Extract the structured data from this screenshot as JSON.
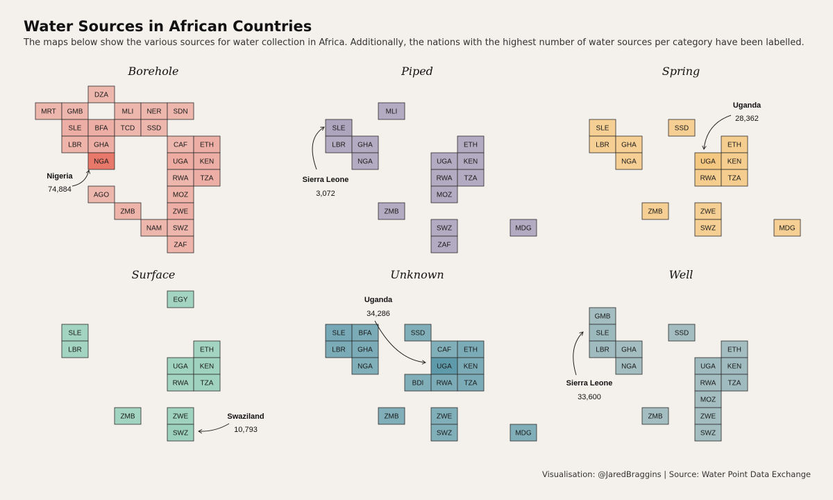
{
  "header": {
    "title": "Water Sources in African Countries",
    "subtitle": "The maps below show the various sources for water collection in Africa. Additionally, the nations with the highest number of water sources per category have been labelled."
  },
  "footer": {
    "caption": "Visualisation: @JaredBraggins  |  Source: Water Point Data Exchange"
  },
  "chart_data": [
    {
      "type": "tile-map",
      "title": "Borehole",
      "color": "#e8786a",
      "tiles": [
        {
          "code": "DZA",
          "col": 3,
          "row": 1,
          "level": 0.2
        },
        {
          "code": "MRT",
          "col": 1,
          "row": 2,
          "level": 0.2
        },
        {
          "code": "GMB",
          "col": 2,
          "row": 2,
          "level": 0.2
        },
        {
          "code": "MLI",
          "col": 4,
          "row": 2,
          "level": 0.2
        },
        {
          "code": "NER",
          "col": 5,
          "row": 2,
          "level": 0.2
        },
        {
          "code": "SDN",
          "col": 6,
          "row": 2,
          "level": 0.2
        },
        {
          "code": "SLE",
          "col": 2,
          "row": 3,
          "level": 0.3
        },
        {
          "code": "BFA",
          "col": 3,
          "row": 3,
          "level": 0.3
        },
        {
          "code": "TCD",
          "col": 4,
          "row": 3,
          "level": 0.2
        },
        {
          "code": "SSD",
          "col": 5,
          "row": 3,
          "level": 0.2
        },
        {
          "code": "LBR",
          "col": 2,
          "row": 4,
          "level": 0.25
        },
        {
          "code": "GHA",
          "col": 3,
          "row": 4,
          "level": 0.3
        },
        {
          "code": "CAF",
          "col": 6,
          "row": 4,
          "level": 0.2
        },
        {
          "code": "ETH",
          "col": 7,
          "row": 4,
          "level": 0.3
        },
        {
          "code": "NGA",
          "col": 3,
          "row": 5,
          "level": 1.0
        },
        {
          "code": "UGA",
          "col": 6,
          "row": 5,
          "level": 0.35
        },
        {
          "code": "KEN",
          "col": 7,
          "row": 5,
          "level": 0.3
        },
        {
          "code": "RWA",
          "col": 6,
          "row": 6,
          "level": 0.2
        },
        {
          "code": "TZA",
          "col": 7,
          "row": 6,
          "level": 0.3
        },
        {
          "code": "AGO",
          "col": 3,
          "row": 7,
          "level": 0.2
        },
        {
          "code": "MOZ",
          "col": 6,
          "row": 7,
          "level": 0.25
        },
        {
          "code": "ZMB",
          "col": 4,
          "row": 8,
          "level": 0.25
        },
        {
          "code": "ZWE",
          "col": 6,
          "row": 8,
          "level": 0.3
        },
        {
          "code": "NAM",
          "col": 5,
          "row": 9,
          "level": 0.2
        },
        {
          "code": "SWZ",
          "col": 6,
          "row": 9,
          "level": 0.2
        },
        {
          "code": "ZAF",
          "col": 6,
          "row": 10,
          "level": 0.25
        }
      ],
      "annotation": {
        "country": "Nigeria",
        "value": "74,884"
      }
    },
    {
      "type": "tile-map",
      "title": "Piped",
      "color": "#9c92b2",
      "tiles": [
        {
          "code": "MLI",
          "col": 4,
          "row": 2,
          "level": 0.6
        },
        {
          "code": "SLE",
          "col": 2,
          "row": 3,
          "level": 0.7
        },
        {
          "code": "LBR",
          "col": 2,
          "row": 4,
          "level": 0.6
        },
        {
          "code": "GHA",
          "col": 3,
          "row": 4,
          "level": 0.6
        },
        {
          "code": "ETH",
          "col": 7,
          "row": 4,
          "level": 0.6
        },
        {
          "code": "NGA",
          "col": 3,
          "row": 5,
          "level": 0.6
        },
        {
          "code": "UGA",
          "col": 6,
          "row": 5,
          "level": 0.6
        },
        {
          "code": "KEN",
          "col": 7,
          "row": 5,
          "level": 0.6
        },
        {
          "code": "RWA",
          "col": 6,
          "row": 6,
          "level": 0.6
        },
        {
          "code": "TZA",
          "col": 7,
          "row": 6,
          "level": 0.6
        },
        {
          "code": "MOZ",
          "col": 6,
          "row": 7,
          "level": 0.6
        },
        {
          "code": "ZMB",
          "col": 4,
          "row": 8,
          "level": 0.6
        },
        {
          "code": "SWZ",
          "col": 6,
          "row": 9,
          "level": 0.6
        },
        {
          "code": "MDG",
          "col": 9,
          "row": 9,
          "level": 0.6
        },
        {
          "code": "ZAF",
          "col": 6,
          "row": 10,
          "level": 0.6
        }
      ],
      "annotation": {
        "country": "Sierra Leone",
        "value": "3,072"
      }
    },
    {
      "type": "tile-map",
      "title": "Spring",
      "color": "#f5c77d",
      "tiles": [
        {
          "code": "SLE",
          "col": 2,
          "row": 3,
          "level": 0.7
        },
        {
          "code": "SSD",
          "col": 5,
          "row": 3,
          "level": 0.7
        },
        {
          "code": "LBR",
          "col": 2,
          "row": 4,
          "level": 0.7
        },
        {
          "code": "GHA",
          "col": 3,
          "row": 4,
          "level": 0.7
        },
        {
          "code": "ETH",
          "col": 7,
          "row": 4,
          "level": 0.75
        },
        {
          "code": "NGA",
          "col": 3,
          "row": 5,
          "level": 0.7
        },
        {
          "code": "UGA",
          "col": 6,
          "row": 5,
          "level": 0.95
        },
        {
          "code": "KEN",
          "col": 7,
          "row": 5,
          "level": 0.75
        },
        {
          "code": "RWA",
          "col": 6,
          "row": 6,
          "level": 0.75
        },
        {
          "code": "TZA",
          "col": 7,
          "row": 6,
          "level": 0.75
        },
        {
          "code": "ZMB",
          "col": 4,
          "row": 8,
          "level": 0.7
        },
        {
          "code": "ZWE",
          "col": 6,
          "row": 8,
          "level": 0.7
        },
        {
          "code": "SWZ",
          "col": 6,
          "row": 9,
          "level": 0.7
        },
        {
          "code": "MDG",
          "col": 9,
          "row": 9,
          "level": 0.7
        }
      ],
      "annotation": {
        "country": "Uganda",
        "value": "28,362"
      }
    },
    {
      "type": "tile-map",
      "title": "Surface",
      "color": "#8fcdb6",
      "tiles": [
        {
          "code": "EGY",
          "col": 6,
          "row": 1,
          "level": 0.7
        },
        {
          "code": "SLE",
          "col": 2,
          "row": 3,
          "level": 0.7
        },
        {
          "code": "LBR",
          "col": 2,
          "row": 4,
          "level": 0.7
        },
        {
          "code": "ETH",
          "col": 7,
          "row": 4,
          "level": 0.7
        },
        {
          "code": "UGA",
          "col": 6,
          "row": 5,
          "level": 0.75
        },
        {
          "code": "KEN",
          "col": 7,
          "row": 5,
          "level": 0.75
        },
        {
          "code": "RWA",
          "col": 6,
          "row": 6,
          "level": 0.7
        },
        {
          "code": "TZA",
          "col": 7,
          "row": 6,
          "level": 0.75
        },
        {
          "code": "ZMB",
          "col": 4,
          "row": 8,
          "level": 0.7
        },
        {
          "code": "ZWE",
          "col": 6,
          "row": 8,
          "level": 0.75
        },
        {
          "code": "SWZ",
          "col": 6,
          "row": 9,
          "level": 0.8
        }
      ],
      "annotation": {
        "country": "Swaziland",
        "value": "10,793"
      }
    },
    {
      "type": "tile-map",
      "title": "Unknown",
      "color": "#5e9aaa",
      "tiles": [
        {
          "code": "SLE",
          "col": 2,
          "row": 3,
          "level": 0.75
        },
        {
          "code": "BFA",
          "col": 3,
          "row": 3,
          "level": 0.7
        },
        {
          "code": "SSD",
          "col": 5,
          "row": 3,
          "level": 0.65
        },
        {
          "code": "LBR",
          "col": 2,
          "row": 4,
          "level": 0.7
        },
        {
          "code": "GHA",
          "col": 3,
          "row": 4,
          "level": 0.7
        },
        {
          "code": "CAF",
          "col": 6,
          "row": 4,
          "level": 0.65
        },
        {
          "code": "ETH",
          "col": 7,
          "row": 4,
          "level": 0.7
        },
        {
          "code": "NGA",
          "col": 3,
          "row": 5,
          "level": 0.65
        },
        {
          "code": "UGA",
          "col": 6,
          "row": 5,
          "level": 1.0
        },
        {
          "code": "KEN",
          "col": 7,
          "row": 5,
          "level": 0.7
        },
        {
          "code": "BDI",
          "col": 5,
          "row": 6,
          "level": 0.65
        },
        {
          "code": "RWA",
          "col": 6,
          "row": 6,
          "level": 0.7
        },
        {
          "code": "TZA",
          "col": 7,
          "row": 6,
          "level": 0.7
        },
        {
          "code": "ZMB",
          "col": 4,
          "row": 8,
          "level": 0.65
        },
        {
          "code": "ZWE",
          "col": 6,
          "row": 8,
          "level": 0.65
        },
        {
          "code": "SWZ",
          "col": 6,
          "row": 9,
          "level": 0.65
        },
        {
          "code": "MDG",
          "col": 9,
          "row": 9,
          "level": 0.65
        }
      ],
      "annotation": {
        "country": "Uganda",
        "value": "34,286"
      }
    },
    {
      "type": "tile-map",
      "title": "Well",
      "color": "#93b3b8",
      "tiles": [
        {
          "code": "GMB",
          "col": 2,
          "row": 2,
          "level": 0.75
        },
        {
          "code": "SLE",
          "col": 2,
          "row": 3,
          "level": 0.85
        },
        {
          "code": "SSD",
          "col": 5,
          "row": 3,
          "level": 0.75
        },
        {
          "code": "LBR",
          "col": 2,
          "row": 4,
          "level": 0.8
        },
        {
          "code": "GHA",
          "col": 3,
          "row": 4,
          "level": 0.75
        },
        {
          "code": "ETH",
          "col": 7,
          "row": 4,
          "level": 0.75
        },
        {
          "code": "NGA",
          "col": 3,
          "row": 5,
          "level": 0.75
        },
        {
          "code": "UGA",
          "col": 6,
          "row": 5,
          "level": 0.8
        },
        {
          "code": "KEN",
          "col": 7,
          "row": 5,
          "level": 0.8
        },
        {
          "code": "RWA",
          "col": 6,
          "row": 6,
          "level": 0.75
        },
        {
          "code": "TZA",
          "col": 7,
          "row": 6,
          "level": 0.8
        },
        {
          "code": "MOZ",
          "col": 6,
          "row": 7,
          "level": 0.75
        },
        {
          "code": "ZMB",
          "col": 4,
          "row": 8,
          "level": 0.75
        },
        {
          "code": "ZWE",
          "col": 6,
          "row": 8,
          "level": 0.75
        },
        {
          "code": "SWZ",
          "col": 6,
          "row": 9,
          "level": 0.75
        }
      ],
      "annotation": {
        "country": "Sierra Leone",
        "value": "33,600"
      }
    }
  ]
}
